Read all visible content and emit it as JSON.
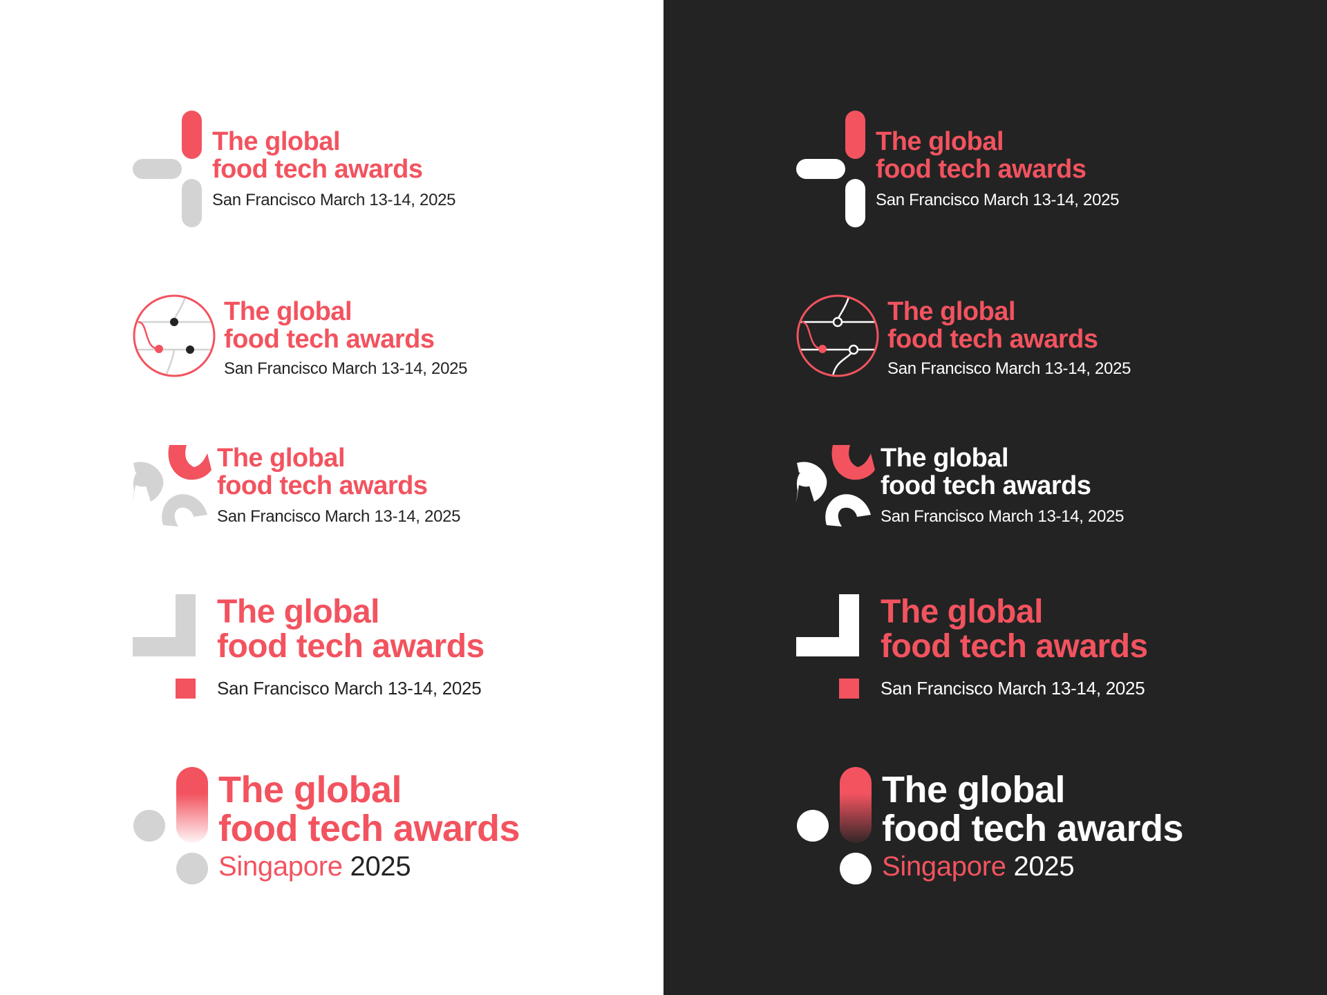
{
  "colors": {
    "accent": "#F2535F",
    "light_bg": "#FFFFFF",
    "dark_bg": "#232323",
    "grey": "#D3D3D3",
    "ink": "#232323",
    "white": "#FFFFFF"
  },
  "icons": [
    "plus-cross-mark-icon",
    "circle-network-mark-icon",
    "pinwheel-mark-icon",
    "corner-square-mark-icon",
    "dots-pill-mark-icon"
  ],
  "logo": {
    "title_line1": "The global",
    "title_line2": "food tech awards",
    "subtitle_sf": "San Francisco March 13-14, 2025",
    "city": "Singapore",
    "year": "2025"
  }
}
